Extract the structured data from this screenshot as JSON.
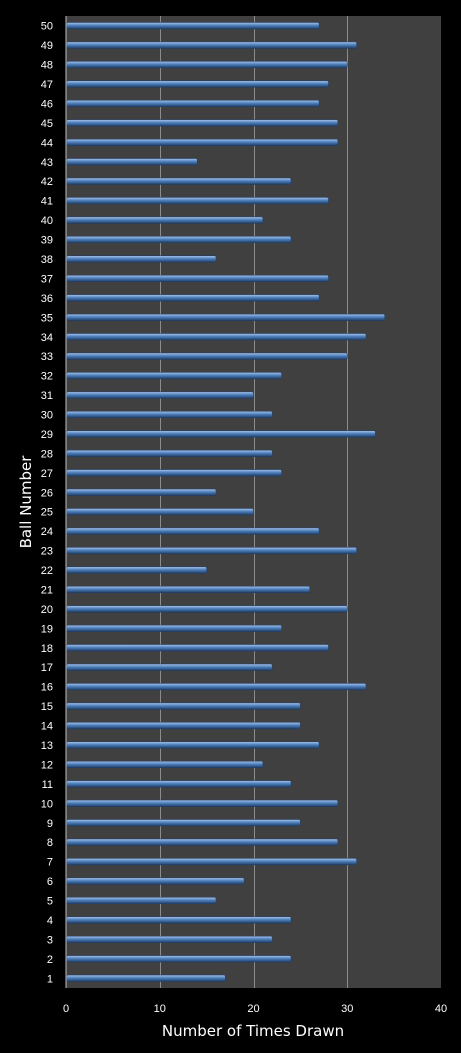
{
  "chart_data": {
    "type": "bar",
    "orientation": "horizontal",
    "xlabel": "Number of Times Drawn",
    "ylabel": "Ball Number",
    "xlim": [
      0,
      40
    ],
    "xticks": [
      "0",
      "10",
      "20",
      "30",
      "40"
    ],
    "grid": "vertical major gridlines",
    "legend": "none",
    "colors": {
      "background": "#000000",
      "plot_area": "#404040",
      "gridline": "#8c8c8c",
      "bar": "#4f81bd",
      "bar_highlight": "#a9c4ea",
      "bar_shadow": "#1f3d66",
      "text": "#ffffff"
    },
    "categories": [
      "1",
      "2",
      "3",
      "4",
      "5",
      "6",
      "7",
      "8",
      "9",
      "10",
      "11",
      "12",
      "13",
      "14",
      "15",
      "16",
      "17",
      "18",
      "19",
      "20",
      "21",
      "22",
      "23",
      "24",
      "25",
      "26",
      "27",
      "28",
      "29",
      "30",
      "31",
      "32",
      "33",
      "34",
      "35",
      "36",
      "37",
      "38",
      "39",
      "40",
      "41",
      "42",
      "43",
      "44",
      "45",
      "46",
      "47",
      "48",
      "49",
      "50"
    ],
    "values": [
      17,
      24,
      22,
      24,
      16,
      19,
      31,
      29,
      25,
      29,
      24,
      21,
      27,
      25,
      25,
      32,
      22,
      28,
      23,
      30,
      26,
      15,
      31,
      27,
      20,
      16,
      23,
      22,
      33,
      22,
      20,
      23,
      30,
      32,
      34,
      27,
      28,
      16,
      24,
      21,
      28,
      24,
      14,
      29,
      29,
      27,
      28,
      30,
      31,
      27
    ]
  }
}
